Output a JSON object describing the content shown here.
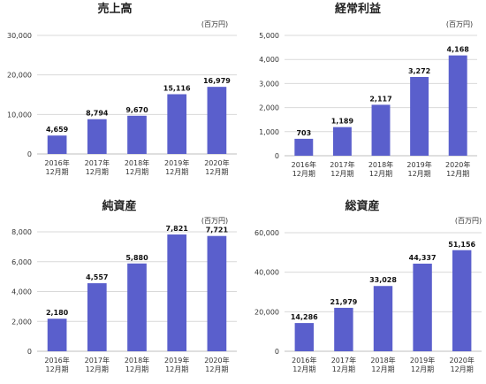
{
  "chart_data": [
    {
      "type": "bar",
      "title": "売上高",
      "unit_label": "(百万円)",
      "categories": [
        [
          "2016年",
          "12月期"
        ],
        [
          "2017年",
          "12月期"
        ],
        [
          "2018年",
          "12月期"
        ],
        [
          "2019年",
          "12月期"
        ],
        [
          "2020年",
          "12月期"
        ]
      ],
      "values": [
        4659,
        8794,
        9670,
        15116,
        16979
      ],
      "data_labels": [
        "4,659",
        "8,794",
        "9,670",
        "15,116",
        "16,979"
      ],
      "yticks": [
        0,
        10000,
        20000,
        30000
      ],
      "ytick_labels": [
        "0",
        "10,000",
        "20,000",
        "30,000"
      ],
      "ylim": [
        0,
        30000
      ],
      "grid": true
    },
    {
      "type": "bar",
      "title": "経常利益",
      "unit_label": "(百万円)",
      "categories": [
        [
          "2016年",
          "12月期"
        ],
        [
          "2017年",
          "12月期"
        ],
        [
          "2018年",
          "12月期"
        ],
        [
          "2019年",
          "12月期"
        ],
        [
          "2020年",
          "12月期"
        ]
      ],
      "values": [
        703,
        1189,
        2117,
        3272,
        4168
      ],
      "data_labels": [
        "703",
        "1,189",
        "2,117",
        "3,272",
        "4,168"
      ],
      "yticks": [
        0,
        1000,
        2000,
        3000,
        4000,
        5000
      ],
      "ytick_labels": [
        "0",
        "1,000",
        "2,000",
        "3,000",
        "4,000",
        "5,000"
      ],
      "ylim": [
        0,
        5000
      ],
      "grid": true
    },
    {
      "type": "bar",
      "title": "純資産",
      "unit_label": "(百万円)",
      "categories": [
        [
          "2016年",
          "12月期"
        ],
        [
          "2017年",
          "12月期"
        ],
        [
          "2018年",
          "12月期"
        ],
        [
          "2019年",
          "12月期"
        ],
        [
          "2020年",
          "12月期"
        ]
      ],
      "values": [
        2180,
        4557,
        5880,
        7821,
        7721
      ],
      "data_labels": [
        "2,180",
        "4,557",
        "5,880",
        "7,821",
        "7,721"
      ],
      "yticks": [
        0,
        2000,
        4000,
        6000,
        8000
      ],
      "ytick_labels": [
        "0",
        "2,000",
        "4,000",
        "6,000",
        "8,000"
      ],
      "ylim": [
        0,
        8000
      ],
      "grid": true
    },
    {
      "type": "bar",
      "title": "総資産",
      "unit_label": "(百万円)",
      "categories": [
        [
          "2016年",
          "12月期"
        ],
        [
          "2017年",
          "12月期"
        ],
        [
          "2018年",
          "12月期"
        ],
        [
          "2019年",
          "12月期"
        ],
        [
          "2020年",
          "12月期"
        ]
      ],
      "values": [
        14286,
        21979,
        33028,
        44337,
        51156
      ],
      "data_labels": [
        "14,286",
        "21,979",
        "33,028",
        "44,337",
        "51,156"
      ],
      "yticks": [
        0,
        20000,
        40000,
        60000
      ],
      "ytick_labels": [
        "0",
        "20,000",
        "40,000",
        "60,000"
      ],
      "ylim": [
        0,
        60000
      ],
      "grid": true
    }
  ],
  "colors": {
    "bar": "#5a5fcc",
    "grid": "#d9d9d9",
    "axis": "#bfbfbf"
  }
}
